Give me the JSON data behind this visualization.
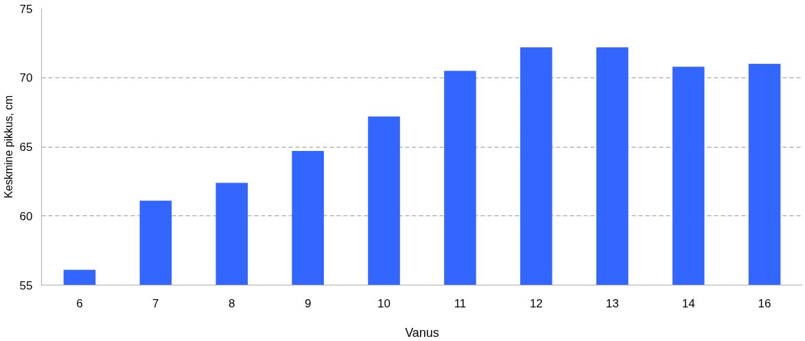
{
  "chart_data": {
    "type": "bar",
    "xlabel": "Vanus",
    "ylabel": "Keskmine pikkus, cm",
    "categories": [
      "6",
      "7",
      "8",
      "9",
      "10",
      "11",
      "12",
      "13",
      "14",
      "16"
    ],
    "values": [
      56.1,
      61.1,
      62.4,
      64.7,
      67.2,
      70.5,
      72.2,
      72.2,
      70.8,
      71.0
    ],
    "color": "#3366ff",
    "ylim": [
      55,
      75
    ],
    "yticks": [
      55,
      60,
      65,
      70,
      75
    ],
    "grid": "y"
  }
}
